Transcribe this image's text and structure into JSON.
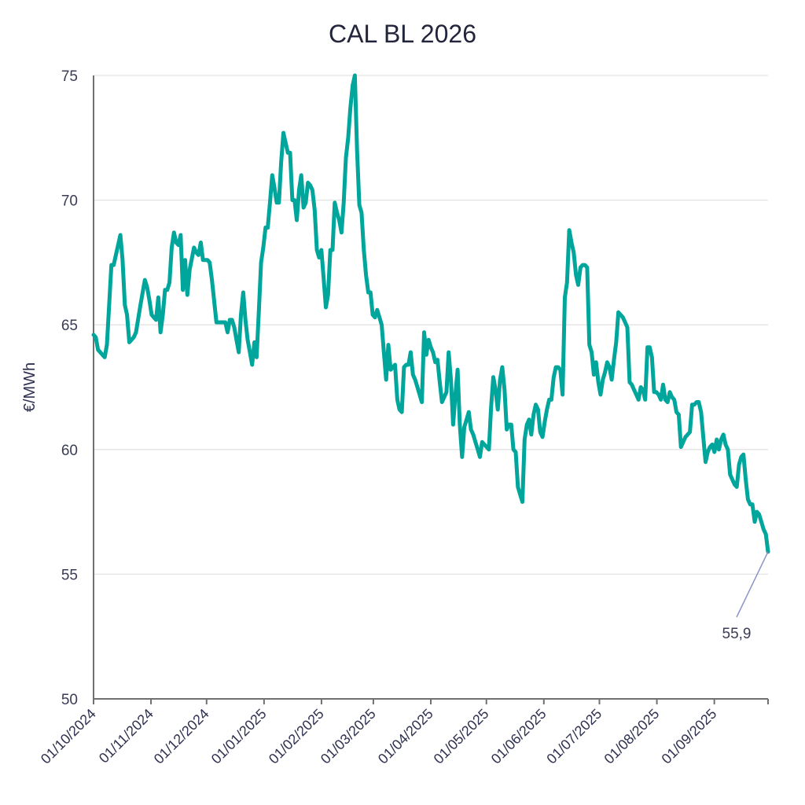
{
  "chart_data": {
    "type": "line",
    "title": "CAL BL 2026",
    "xlabel": "",
    "ylabel": "€/MWh",
    "ylim": [
      50,
      75
    ],
    "yticks": [
      50,
      55,
      60,
      65,
      70,
      75
    ],
    "ytick_labels": [
      "50",
      "55",
      "60",
      "65",
      "70",
      "75"
    ],
    "grid": true,
    "x_start": "01/10/2024",
    "x_end": "30/09/2025",
    "x_total_days": 364,
    "xticks": [
      {
        "label": "01/10/2024",
        "day": 0
      },
      {
        "label": "01/11/2024",
        "day": 31
      },
      {
        "label": "01/12/2024",
        "day": 61
      },
      {
        "label": "01/01/2025",
        "day": 92
      },
      {
        "label": "01/02/2025",
        "day": 123
      },
      {
        "label": "01/03/2025",
        "day": 151
      },
      {
        "label": "01/04/2025",
        "day": 182
      },
      {
        "label": "01/05/2025",
        "day": 212
      },
      {
        "label": "01/06/2025",
        "day": 243
      },
      {
        "label": "01/07/2025",
        "day": 273
      },
      {
        "label": "01/08/2025",
        "day": 304
      },
      {
        "label": "01/09/2025",
        "day": 335
      },
      {
        "label": "",
        "day": 364
      }
    ],
    "series": [
      {
        "name": "CAL BL 2026",
        "color": "#00a59b",
        "points": [
          [
            0,
            64.6
          ],
          [
            1,
            64.5
          ],
          [
            2,
            64.0
          ],
          [
            4,
            63.8
          ],
          [
            5,
            63.7
          ],
          [
            6,
            64.2
          ],
          [
            8,
            67.4
          ],
          [
            9,
            67.4
          ],
          [
            10,
            67.8
          ],
          [
            12,
            68.6
          ],
          [
            13,
            67.6
          ],
          [
            14,
            65.8
          ],
          [
            15,
            65.4
          ],
          [
            16,
            64.3
          ],
          [
            18,
            64.5
          ],
          [
            19,
            64.7
          ],
          [
            21,
            65.8
          ],
          [
            23,
            66.8
          ],
          [
            24,
            66.5
          ],
          [
            25,
            66.0
          ],
          [
            26,
            65.4
          ],
          [
            27,
            65.3
          ],
          [
            28,
            65.2
          ],
          [
            29,
            66.1
          ],
          [
            30,
            64.7
          ],
          [
            31,
            65.4
          ],
          [
            32,
            66.4
          ],
          [
            33,
            66.4
          ],
          [
            34,
            66.7
          ],
          [
            35,
            68.1
          ],
          [
            36,
            68.7
          ],
          [
            37,
            68.3
          ],
          [
            38,
            68.2
          ],
          [
            39,
            68.6
          ],
          [
            40,
            66.4
          ],
          [
            41,
            67.6
          ],
          [
            42,
            66.2
          ],
          [
            43,
            67.2
          ],
          [
            45,
            68.1
          ],
          [
            46,
            67.9
          ],
          [
            47,
            67.8
          ],
          [
            48,
            68.3
          ],
          [
            49,
            67.6
          ],
          [
            51,
            67.6
          ],
          [
            52,
            67.5
          ],
          [
            53,
            66.8
          ],
          [
            55,
            65.1
          ],
          [
            57,
            65.1
          ],
          [
            59,
            65.1
          ],
          [
            60,
            64.7
          ],
          [
            61,
            65.2
          ],
          [
            62,
            65.2
          ],
          [
            63,
            64.9
          ],
          [
            64,
            64.4
          ],
          [
            65,
            63.9
          ],
          [
            66,
            65.4
          ],
          [
            67,
            66.3
          ],
          [
            68,
            65.2
          ],
          [
            69,
            64.4
          ],
          [
            70,
            63.9
          ],
          [
            71,
            63.4
          ],
          [
            72,
            64.3
          ],
          [
            73,
            63.7
          ],
          [
            74,
            65.5
          ],
          [
            75,
            67.5
          ],
          [
            76,
            68.1
          ],
          [
            77,
            68.9
          ],
          [
            78,
            68.9
          ],
          [
            79,
            69.9
          ],
          [
            80,
            71.0
          ],
          [
            81,
            70.5
          ],
          [
            82,
            69.9
          ],
          [
            83,
            69.9
          ],
          [
            84,
            71.5
          ],
          [
            85,
            72.7
          ],
          [
            86,
            72.3
          ],
          [
            87,
            71.9
          ],
          [
            88,
            71.9
          ],
          [
            89,
            70.0
          ],
          [
            90,
            70.0
          ],
          [
            91,
            69.2
          ],
          [
            92,
            70.4
          ],
          [
            93,
            71.0
          ],
          [
            94,
            69.7
          ],
          [
            95,
            69.9
          ],
          [
            96,
            70.7
          ],
          [
            97,
            70.6
          ],
          [
            98,
            70.4
          ],
          [
            99,
            69.6
          ],
          [
            100,
            68.0
          ],
          [
            101,
            67.7
          ],
          [
            102,
            68.0
          ],
          [
            103,
            66.9
          ],
          [
            104,
            65.7
          ],
          [
            105,
            66.2
          ],
          [
            106,
            68.0
          ],
          [
            107,
            68.0
          ],
          [
            108,
            69.9
          ],
          [
            109,
            69.5
          ],
          [
            110,
            69.2
          ],
          [
            111,
            68.7
          ],
          [
            112,
            69.9
          ],
          [
            113,
            71.7
          ],
          [
            114,
            72.5
          ],
          [
            115,
            73.7
          ],
          [
            116,
            74.6
          ],
          [
            117,
            75.0
          ],
          [
            118,
            72.0
          ],
          [
            119,
            69.8
          ],
          [
            120,
            69.5
          ],
          [
            121,
            68.0
          ],
          [
            122,
            67.0
          ],
          [
            123,
            66.3
          ],
          [
            124,
            66.3
          ],
          [
            125,
            65.4
          ],
          [
            126,
            65.3
          ],
          [
            127,
            65.6
          ],
          [
            128,
            65.3
          ],
          [
            129,
            65.0
          ],
          [
            130,
            63.9
          ],
          [
            131,
            62.8
          ],
          [
            132,
            64.2
          ],
          [
            133,
            63.2
          ],
          [
            134,
            63.3
          ],
          [
            135,
            63.4
          ],
          [
            136,
            62.0
          ],
          [
            137,
            61.6
          ],
          [
            138,
            61.5
          ],
          [
            139,
            63.3
          ],
          [
            140,
            63.4
          ],
          [
            141,
            63.4
          ],
          [
            142,
            63.9
          ],
          [
            143,
            63.0
          ],
          [
            144,
            62.8
          ],
          [
            145,
            62.5
          ],
          [
            146,
            62.2
          ],
          [
            147,
            61.9
          ],
          [
            148,
            64.7
          ],
          [
            149,
            63.8
          ],
          [
            150,
            64.4
          ],
          [
            151,
            64.1
          ],
          [
            152,
            63.9
          ],
          [
            153,
            63.5
          ],
          [
            154,
            63.6
          ],
          [
            155,
            62.7
          ],
          [
            156,
            61.9
          ],
          [
            157,
            62.1
          ],
          [
            158,
            62.3
          ],
          [
            159,
            63.9
          ],
          [
            160,
            62.8
          ],
          [
            161,
            61.0
          ],
          [
            162,
            62.2
          ],
          [
            163,
            63.2
          ],
          [
            164,
            61.0
          ],
          [
            165,
            59.7
          ],
          [
            166,
            60.9
          ],
          [
            167,
            61.2
          ],
          [
            168,
            61.5
          ],
          [
            169,
            60.8
          ],
          [
            170,
            60.6
          ],
          [
            171,
            60.3
          ],
          [
            172,
            60.0
          ],
          [
            173,
            59.7
          ],
          [
            174,
            60.3
          ],
          [
            175,
            60.2
          ],
          [
            176,
            60.1
          ],
          [
            177,
            60.0
          ],
          [
            178,
            61.7
          ],
          [
            179,
            62.9
          ],
          [
            180,
            62.4
          ],
          [
            181,
            61.6
          ],
          [
            182,
            62.8
          ],
          [
            183,
            63.3
          ],
          [
            184,
            62.4
          ],
          [
            185,
            60.8
          ],
          [
            186,
            61.0
          ],
          [
            187,
            61.0
          ],
          [
            188,
            60.0
          ],
          [
            189,
            59.9
          ],
          [
            190,
            58.5
          ],
          [
            191,
            58.2
          ],
          [
            192,
            57.9
          ],
          [
            193,
            60.4
          ],
          [
            194,
            61.0
          ],
          [
            195,
            61.2
          ],
          [
            196,
            60.6
          ],
          [
            197,
            61.4
          ],
          [
            198,
            61.8
          ],
          [
            199,
            61.6
          ],
          [
            200,
            60.7
          ],
          [
            201,
            60.5
          ],
          [
            202,
            61.1
          ],
          [
            203,
            61.6
          ],
          [
            204,
            62.0
          ],
          [
            205,
            62.0
          ],
          [
            206,
            62.9
          ],
          [
            207,
            63.3
          ],
          [
            208,
            63.3
          ],
          [
            209,
            63.2
          ],
          [
            210,
            62.2
          ],
          [
            211,
            66.1
          ],
          [
            212,
            66.7
          ],
          [
            213,
            68.8
          ],
          [
            214,
            68.3
          ],
          [
            215,
            67.9
          ],
          [
            216,
            67.0
          ],
          [
            217,
            66.6
          ],
          [
            218,
            67.3
          ],
          [
            219,
            67.4
          ],
          [
            220,
            67.4
          ],
          [
            221,
            67.3
          ],
          [
            222,
            64.2
          ],
          [
            223,
            63.9
          ],
          [
            224,
            63.0
          ],
          [
            225,
            63.5
          ],
          [
            226,
            62.7
          ],
          [
            227,
            62.2
          ],
          [
            228,
            62.8
          ],
          [
            229,
            63.1
          ],
          [
            230,
            63.5
          ],
          [
            231,
            63.3
          ],
          [
            232,
            62.8
          ],
          [
            233,
            63.6
          ],
          [
            234,
            64.3
          ],
          [
            235,
            65.5
          ],
          [
            236,
            65.4
          ],
          [
            237,
            65.3
          ],
          [
            238,
            65.1
          ],
          [
            239,
            64.9
          ],
          [
            240,
            62.7
          ],
          [
            241,
            62.6
          ],
          [
            242,
            62.4
          ],
          [
            243,
            62.2
          ],
          [
            244,
            62.0
          ],
          [
            245,
            62.5
          ],
          [
            246,
            62.4
          ],
          [
            247,
            62.0
          ],
          [
            248,
            64.1
          ],
          [
            249,
            64.1
          ],
          [
            250,
            63.7
          ],
          [
            251,
            62.3
          ],
          [
            252,
            62.3
          ],
          [
            253,
            62.2
          ],
          [
            254,
            62.0
          ],
          [
            255,
            62.6
          ],
          [
            256,
            62.0
          ],
          [
            257,
            61.9
          ],
          [
            258,
            62.3
          ],
          [
            259,
            62.1
          ],
          [
            260,
            62.0
          ],
          [
            261,
            61.5
          ],
          [
            262,
            61.4
          ],
          [
            263,
            60.1
          ],
          [
            264,
            60.3
          ],
          [
            265,
            60.5
          ],
          [
            266,
            60.6
          ],
          [
            267,
            60.7
          ],
          [
            268,
            61.8
          ],
          [
            269,
            61.8
          ],
          [
            270,
            61.9
          ],
          [
            271,
            61.9
          ],
          [
            272,
            61.5
          ],
          [
            273,
            60.5
          ],
          [
            274,
            59.5
          ],
          [
            275,
            59.9
          ],
          [
            276,
            60.1
          ],
          [
            277,
            60.2
          ],
          [
            278,
            59.9
          ],
          [
            279,
            60.4
          ],
          [
            280,
            60.0
          ],
          [
            281,
            60.4
          ],
          [
            282,
            60.6
          ],
          [
            283,
            60.2
          ],
          [
            284,
            60.0
          ],
          [
            285,
            59.0
          ],
          [
            286,
            58.8
          ],
          [
            287,
            58.6
          ],
          [
            288,
            58.5
          ],
          [
            289,
            59.4
          ],
          [
            290,
            59.7
          ],
          [
            291,
            59.8
          ],
          [
            292,
            58.8
          ],
          [
            293,
            58.0
          ],
          [
            294,
            57.8
          ],
          [
            295,
            57.8
          ],
          [
            296,
            57.1
          ],
          [
            297,
            57.5
          ],
          [
            298,
            57.4
          ],
          [
            299,
            57.1
          ],
          [
            300,
            56.8
          ],
          [
            301,
            56.6
          ],
          [
            302,
            55.9
          ]
        ]
      }
    ],
    "annotations": [
      {
        "label": "55,9",
        "target": "last_point",
        "line_color": "#8b93c9"
      }
    ],
    "legend": "none"
  }
}
